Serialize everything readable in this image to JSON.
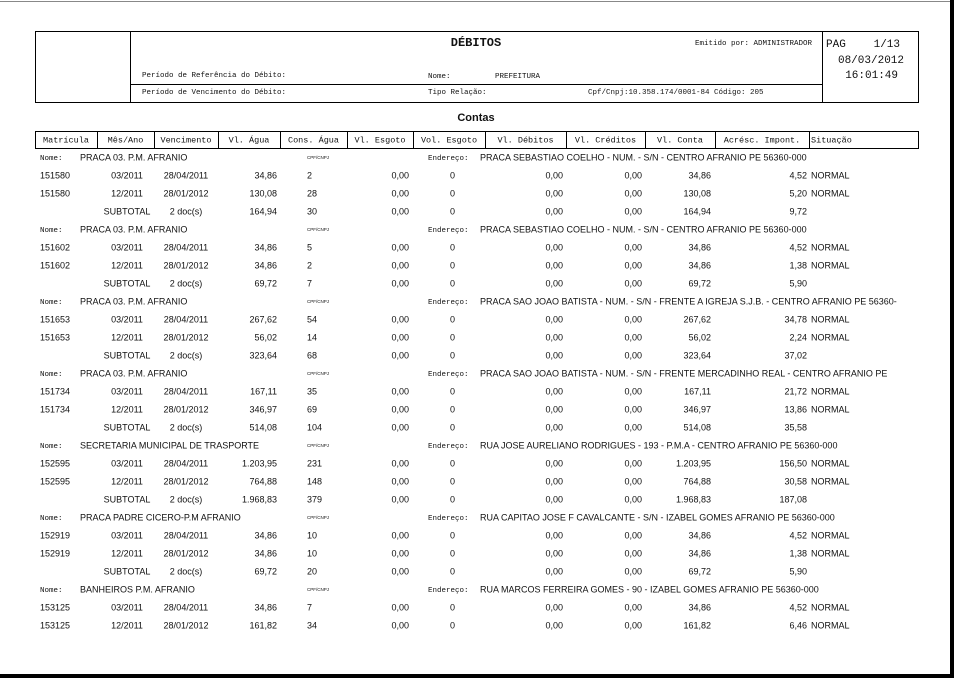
{
  "header": {
    "title": "DÉBITOS",
    "emitted_by": "Emitido por: ADMINISTRADOR",
    "page_label": "PAG",
    "page_number": "1/13",
    "date": "08/03/2012",
    "time": "16:01:49",
    "reference_period_label": "Período de Referência do Débito:",
    "due_period_label": "Período de Vencimento do Débito:",
    "name_label": "Nome:",
    "name": "PREFEITURA",
    "relation_label": "Tipo Relação:",
    "cpf_code": "Cpf/Cnpj:10.358.174/0001-84 Código: 205"
  },
  "section_title": "Contas",
  "columns": [
    "Matrícula",
    "Mês/Ano",
    "Vencimento",
    "Vl. Água",
    "Cons. Água",
    "Vl. Esgoto",
    "Vol. Esgoto",
    "Vl. Débitos",
    "Vl. Créditos",
    "Vl. Conta",
    "Acrésc. Impont.",
    "Situação"
  ],
  "labels": {
    "nome": "Nome:",
    "cpf": "CPF/CNPJ",
    "endereco": "Endereço:"
  },
  "groups": [
    {
      "name": "PRACA 03. P.M. AFRANIO",
      "address": "PRACA SEBASTIAO COELHO - NUM. - S/N - CENTRO AFRANIO PE 56360-000",
      "rows": [
        [
          "151580",
          "03/2011",
          "28/04/2011",
          "34,86",
          "2",
          "0,00",
          "0",
          "0,00",
          "0,00",
          "34,86",
          "4,52",
          "NORMAL"
        ],
        [
          "151580",
          "12/2011",
          "28/01/2012",
          "130,08",
          "28",
          "0,00",
          "0",
          "0,00",
          "0,00",
          "130,08",
          "5,20",
          "NORMAL"
        ]
      ],
      "subtotal": [
        "SUBTOTAL",
        "2 doc(s)",
        "164,94",
        "30",
        "0,00",
        "0",
        "0,00",
        "0,00",
        "164,94",
        "9,72"
      ]
    },
    {
      "name": "PRACA 03. P.M. AFRANIO",
      "address": "PRACA SEBASTIAO COELHO - NUM. - S/N - CENTRO AFRANIO PE 56360-000",
      "rows": [
        [
          "151602",
          "03/2011",
          "28/04/2011",
          "34,86",
          "5",
          "0,00",
          "0",
          "0,00",
          "0,00",
          "34,86",
          "4,52",
          "NORMAL"
        ],
        [
          "151602",
          "12/2011",
          "28/01/2012",
          "34,86",
          "2",
          "0,00",
          "0",
          "0,00",
          "0,00",
          "34,86",
          "1,38",
          "NORMAL"
        ]
      ],
      "subtotal": [
        "SUBTOTAL",
        "2 doc(s)",
        "69,72",
        "7",
        "0,00",
        "0",
        "0,00",
        "0,00",
        "69,72",
        "5,90"
      ]
    },
    {
      "name": "PRACA 03. P.M. AFRANIO",
      "address": "PRACA SAO JOAO BATISTA - NUM. - S/N - FRENTE A IGREJA S.J.B. - CENTRO AFRANIO PE 56360-",
      "rows": [
        [
          "151653",
          "03/2011",
          "28/04/2011",
          "267,62",
          "54",
          "0,00",
          "0",
          "0,00",
          "0,00",
          "267,62",
          "34,78",
          "NORMAL"
        ],
        [
          "151653",
          "12/2011",
          "28/01/2012",
          "56,02",
          "14",
          "0,00",
          "0",
          "0,00",
          "0,00",
          "56,02",
          "2,24",
          "NORMAL"
        ]
      ],
      "subtotal": [
        "SUBTOTAL",
        "2 doc(s)",
        "323,64",
        "68",
        "0,00",
        "0",
        "0,00",
        "0,00",
        "323,64",
        "37,02"
      ]
    },
    {
      "name": "PRACA 03. P.M. AFRANIO",
      "address": "PRACA SAO JOAO BATISTA - NUM. - S/N - FRENTE MERCADINHO REAL - CENTRO AFRANIO PE",
      "rows": [
        [
          "151734",
          "03/2011",
          "28/04/2011",
          "167,11",
          "35",
          "0,00",
          "0",
          "0,00",
          "0,00",
          "167,11",
          "21,72",
          "NORMAL"
        ],
        [
          "151734",
          "12/2011",
          "28/01/2012",
          "346,97",
          "69",
          "0,00",
          "0",
          "0,00",
          "0,00",
          "346,97",
          "13,86",
          "NORMAL"
        ]
      ],
      "subtotal": [
        "SUBTOTAL",
        "2 doc(s)",
        "514,08",
        "104",
        "0,00",
        "0",
        "0,00",
        "0,00",
        "514,08",
        "35,58"
      ]
    },
    {
      "name": "SECRETARIA MUNICIPAL DE TRASPORTE",
      "address": "RUA JOSE AURELIANO RODRIGUES - 193 - P.M.A - CENTRO AFRANIO PE 56360-000",
      "rows": [
        [
          "152595",
          "03/2011",
          "28/04/2011",
          "1.203,95",
          "231",
          "0,00",
          "0",
          "0,00",
          "0,00",
          "1.203,95",
          "156,50",
          "NORMAL"
        ],
        [
          "152595",
          "12/2011",
          "28/01/2012",
          "764,88",
          "148",
          "0,00",
          "0",
          "0,00",
          "0,00",
          "764,88",
          "30,58",
          "NORMAL"
        ]
      ],
      "subtotal": [
        "SUBTOTAL",
        "2 doc(s)",
        "1.968,83",
        "379",
        "0,00",
        "0",
        "0,00",
        "0,00",
        "1.968,83",
        "187,08"
      ]
    },
    {
      "name": "PRACA PADRE CICERO-P.M AFRANIO",
      "address": "RUA CAPITAO JOSE F CAVALCANTE - S/N - IZABEL GOMES AFRANIO PE 56360-000",
      "rows": [
        [
          "152919",
          "03/2011",
          "28/04/2011",
          "34,86",
          "10",
          "0,00",
          "0",
          "0,00",
          "0,00",
          "34,86",
          "4,52",
          "NORMAL"
        ],
        [
          "152919",
          "12/2011",
          "28/01/2012",
          "34,86",
          "10",
          "0,00",
          "0",
          "0,00",
          "0,00",
          "34,86",
          "1,38",
          "NORMAL"
        ]
      ],
      "subtotal": [
        "SUBTOTAL",
        "2 doc(s)",
        "69,72",
        "20",
        "0,00",
        "0",
        "0,00",
        "0,00",
        "69,72",
        "5,90"
      ]
    },
    {
      "name": "BANHEIROS P.M. AFRANIO",
      "address": "RUA MARCOS FERREIRA GOMES - 90 - IZABEL GOMES AFRANIO PE 56360-000",
      "rows": [
        [
          "153125",
          "03/2011",
          "28/04/2011",
          "34,86",
          "7",
          "0,00",
          "0",
          "0,00",
          "0,00",
          "34,86",
          "4,52",
          "NORMAL"
        ],
        [
          "153125",
          "12/2011",
          "28/01/2012",
          "161,82",
          "34",
          "0,00",
          "0",
          "0,00",
          "0,00",
          "161,82",
          "6,46",
          "NORMAL"
        ]
      ]
    }
  ]
}
